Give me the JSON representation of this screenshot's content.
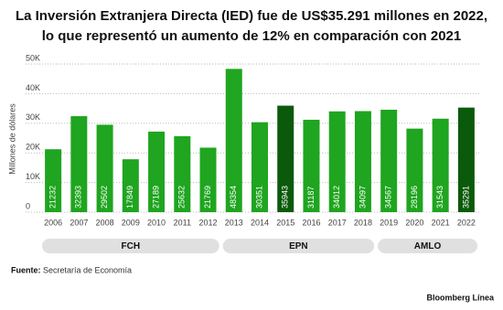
{
  "chart_data": {
    "type": "bar",
    "title": "La Inversión Extranjera Directa (IED) fue de US$35.291 millones en 2022,",
    "subtitle": "lo que representó un aumento de 12% en comparación con 2021",
    "y_label": "Millones de dólares",
    "categories": [
      "2006",
      "2007",
      "2008",
      "2009",
      "2010",
      "2011",
      "2012",
      "2013",
      "2014",
      "2015",
      "2016",
      "2017",
      "2018",
      "2019",
      "2020",
      "2021",
      "2022"
    ],
    "values": [
      21232,
      32393,
      29502,
      17849,
      27189,
      25632,
      21769,
      48354,
      30351,
      35943,
      31187,
      34012,
      34097,
      34567,
      28196,
      31543,
      35291
    ],
    "colors": [
      "#1fa51f",
      "#1fa51f",
      "#1fa51f",
      "#1fa51f",
      "#1fa51f",
      "#1fa51f",
      "#1fa51f",
      "#1fa51f",
      "#1fa51f",
      "#0b5a0b",
      "#1fa51f",
      "#1fa51f",
      "#1fa51f",
      "#1fa51f",
      "#1fa51f",
      "#1fa51f",
      "#0b5a0b"
    ],
    "ylim": [
      0,
      50000
    ],
    "yticks": [
      0,
      {
        "value": 10000,
        "label": "10K"
      },
      {
        "value": 20000,
        "label": "20K"
      },
      {
        "value": 30000,
        "label": "30K"
      },
      {
        "value": 40000,
        "label": "40K"
      },
      {
        "value": 50000,
        "label": "50K"
      }
    ],
    "grid": true,
    "groups": [
      {
        "name": "FCH",
        "from": "2006",
        "to": "2012"
      },
      {
        "name": "EPN",
        "from": "2013",
        "to": "2018"
      },
      {
        "name": "AMLO",
        "from": "2019",
        "to": "2022"
      }
    ],
    "source_label": "Fuente:",
    "source": "Secretaría de Economía",
    "brand": "Bloomberg Línea"
  }
}
